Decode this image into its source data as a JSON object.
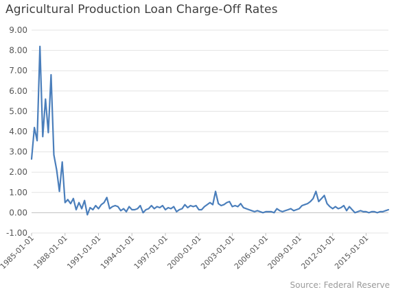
{
  "chart_data": {
    "type": "line",
    "title": "Agricultural Production Loan Charge-Off Rates",
    "source": "Source: Federal Reserve",
    "xlabel": "",
    "ylabel": "",
    "ylim": [
      -1.0,
      9.0
    ],
    "y_ticks": [
      "9.00",
      "8.00",
      "7.00",
      "6.00",
      "5.00",
      "4.00",
      "3.00",
      "2.00",
      "1.00",
      "0.00",
      "-1.00"
    ],
    "y_tick_values": [
      9,
      8,
      7,
      6,
      5,
      4,
      3,
      2,
      1,
      0,
      -1
    ],
    "x_ticks": [
      "1985-01-01",
      "1988-01-01",
      "1991-01-01",
      "1994-01-01",
      "1997-01-01",
      "2000-01-01",
      "2003-01-01",
      "2006-01-01",
      "2009-01-01",
      "2012-01-01",
      "2015-01-01"
    ],
    "grid": true,
    "line_color": "#4a7ebb",
    "series": [
      {
        "x_start": "1985-01-01",
        "frequency": "quarterly",
        "values": [
          2.65,
          4.2,
          3.55,
          8.2,
          3.75,
          5.6,
          3.95,
          6.8,
          2.85,
          2.1,
          1.05,
          2.5,
          0.5,
          0.65,
          0.45,
          0.7,
          0.15,
          0.5,
          0.2,
          0.6,
          -0.1,
          0.25,
          0.15,
          0.35,
          0.2,
          0.4,
          0.5,
          0.75,
          0.2,
          0.3,
          0.35,
          0.3,
          0.1,
          0.2,
          0.05,
          0.3,
          0.15,
          0.15,
          0.2,
          0.35,
          0.0,
          0.15,
          0.2,
          0.35,
          0.2,
          0.3,
          0.25,
          0.35,
          0.15,
          0.25,
          0.2,
          0.3,
          0.05,
          0.15,
          0.2,
          0.4,
          0.25,
          0.35,
          0.3,
          0.35,
          0.15,
          0.15,
          0.3,
          0.4,
          0.5,
          0.4,
          1.05,
          0.45,
          0.35,
          0.4,
          0.5,
          0.55,
          0.3,
          0.35,
          0.3,
          0.45,
          0.25,
          0.2,
          0.15,
          0.1,
          0.05,
          0.1,
          0.05,
          0.0,
          0.05,
          0.05,
          0.05,
          0.0,
          0.2,
          0.1,
          0.05,
          0.1,
          0.15,
          0.2,
          0.1,
          0.15,
          0.2,
          0.35,
          0.4,
          0.45,
          0.55,
          0.7,
          1.05,
          0.55,
          0.7,
          0.85,
          0.45,
          0.3,
          0.2,
          0.3,
          0.2,
          0.25,
          0.35,
          0.1,
          0.3,
          0.15,
          0.0,
          0.05,
          0.1,
          0.05,
          0.05,
          0.0,
          0.05,
          0.05,
          0.0,
          0.05,
          0.05,
          0.1,
          0.15
        ]
      }
    ]
  }
}
